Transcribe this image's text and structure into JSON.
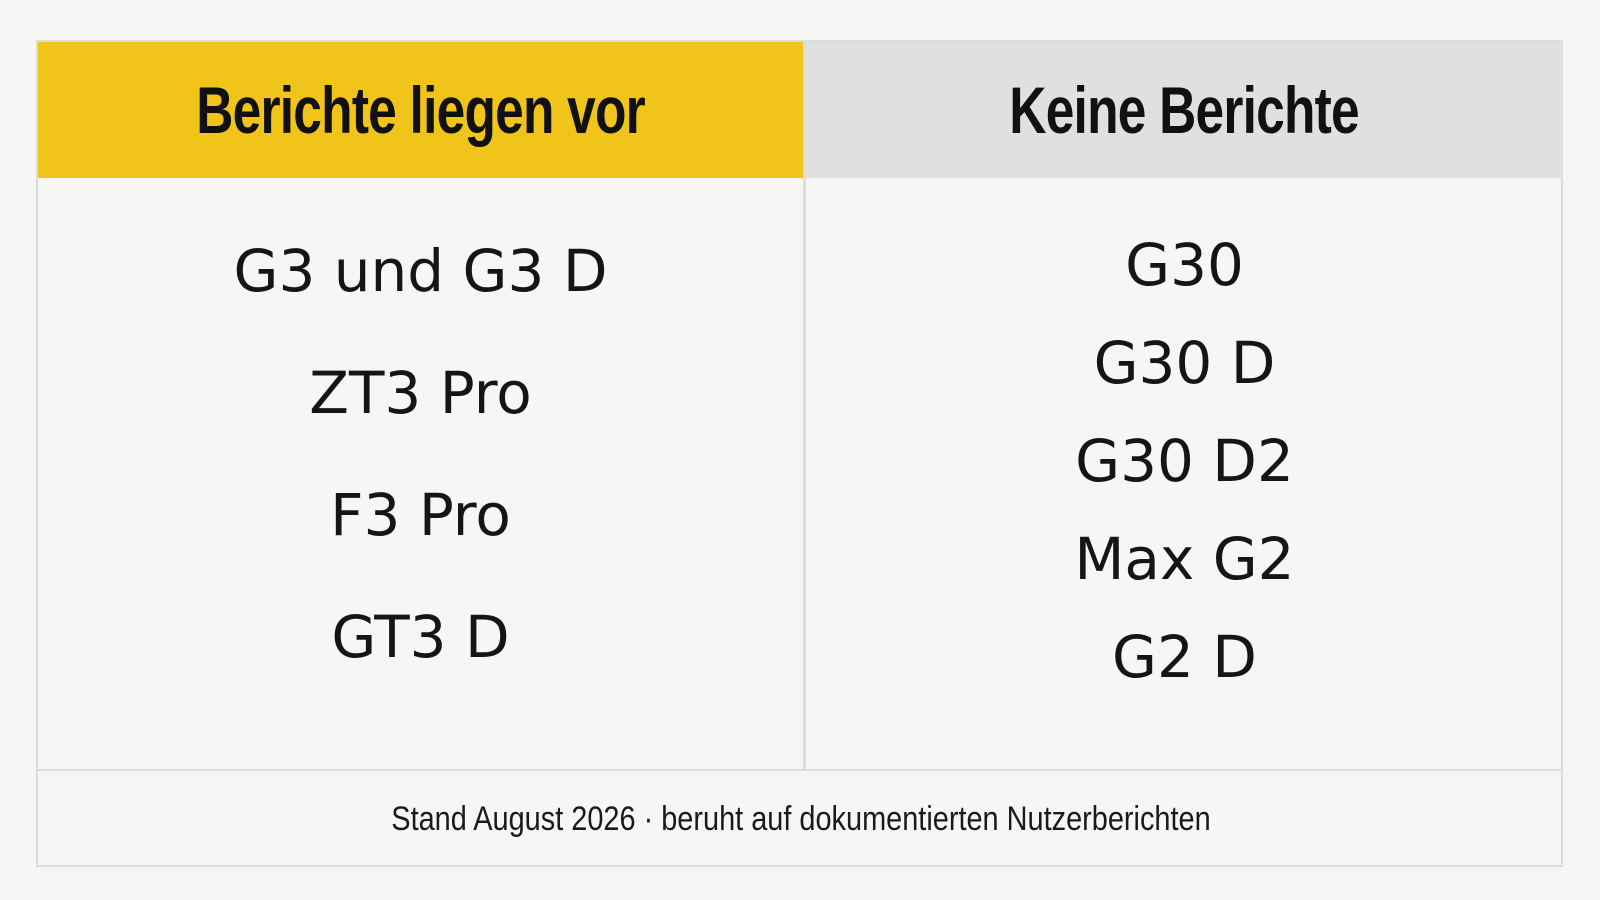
{
  "headers": {
    "left": "Berichte liegen vor",
    "right": "Keine Berichte"
  },
  "columns": {
    "left": [
      "G3 und G3 D",
      "ZT3 Pro",
      "F3 Pro",
      "GT3 D"
    ],
    "right": [
      "G30",
      "G30 D",
      "G30 D2",
      "Max G2",
      "G2 D"
    ]
  },
  "footer": "Stand August 2026 · beruht auf dokumentierten Nutzerberichten",
  "colors": {
    "accent": "#f0c419",
    "neutral_header": "#e0e0e0",
    "background": "#f6f6f4"
  }
}
